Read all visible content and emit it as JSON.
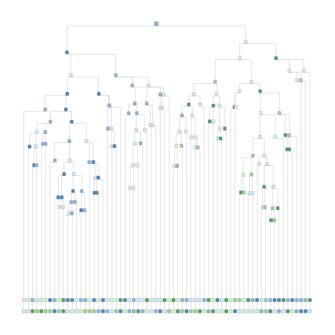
{
  "diagram": {
    "type": "decision-tree",
    "colors": {
      "edge": "#bdbdbd",
      "node_blue_dark": "#4f86b3",
      "node_blue_mid": "#8fb4d6",
      "node_blue_light": "#d4e3f1",
      "node_green_light": "#d9ecc8",
      "node_green_mid": "#9fd08a",
      "node_green_dark": "#4ea64e"
    },
    "legibility_note": ""
  }
}
